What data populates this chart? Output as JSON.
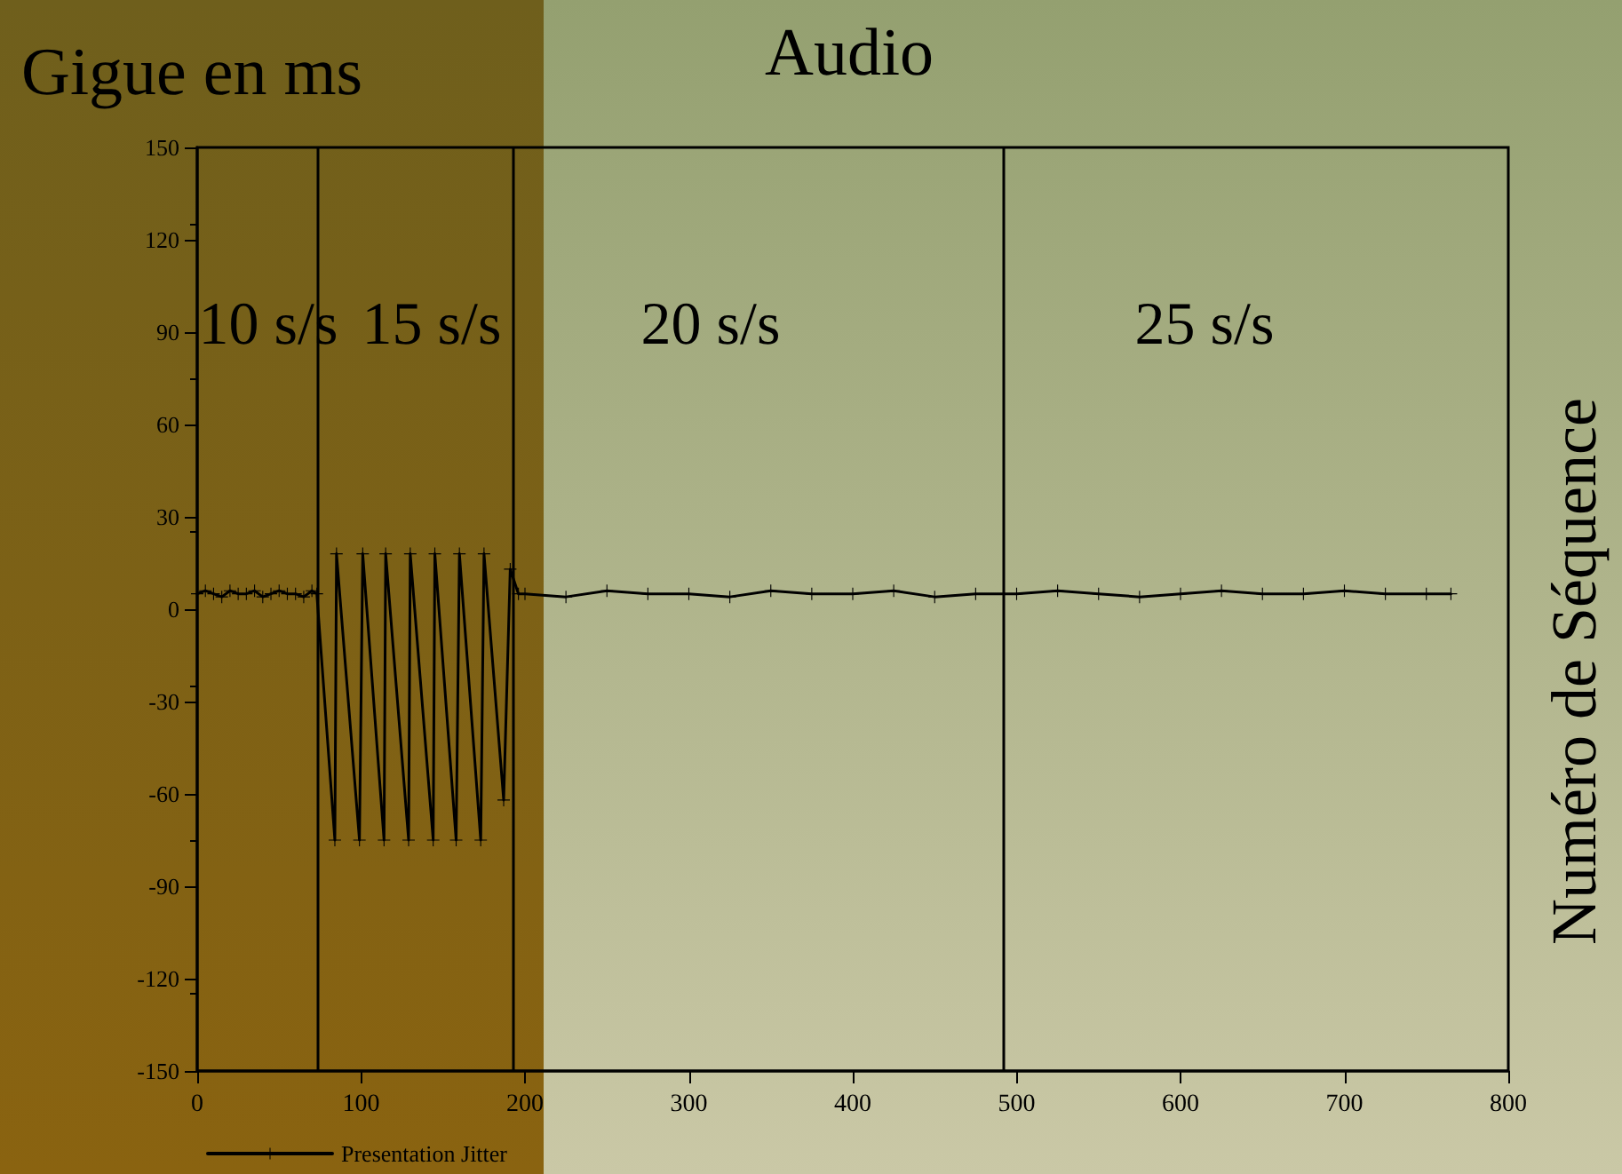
{
  "chart_data": {
    "type": "line",
    "title": "Audio",
    "ylabel": "Gigue en ms",
    "y2label": "Numéro de Séquence",
    "x": [
      0,
      5,
      10,
      15,
      20,
      25,
      30,
      35,
      40,
      45,
      50,
      55,
      60,
      65,
      70,
      73,
      84,
      85,
      99,
      101,
      114,
      115,
      129,
      130,
      144,
      145,
      158,
      160,
      173,
      175,
      187,
      191,
      196,
      200,
      225,
      250,
      275,
      300,
      325,
      350,
      375,
      400,
      425,
      450,
      475,
      500,
      525,
      550,
      575,
      600,
      625,
      650,
      675,
      700,
      725,
      750,
      765
    ],
    "series": [
      {
        "name": "Presentation Jitter",
        "color": "#000000",
        "values": [
          5,
          6,
          5,
          4,
          6,
          5,
          5,
          6,
          4,
          5,
          6,
          5,
          5,
          4,
          6,
          5,
          -75,
          18,
          -75,
          18,
          -75,
          18,
          -75,
          18,
          -75,
          18,
          -75,
          18,
          -75,
          18,
          -62,
          13,
          5,
          5,
          4,
          6,
          5,
          5,
          4,
          6,
          5,
          5,
          6,
          4,
          5,
          5,
          6,
          5,
          4,
          5,
          6,
          5,
          5,
          6,
          5,
          5,
          5
        ]
      }
    ],
    "xlim": [
      0,
      800
    ],
    "xticks": [
      0,
      100,
      200,
      300,
      400,
      500,
      600,
      700,
      800
    ],
    "ylim": [
      -150,
      150
    ],
    "yticks": [
      -150,
      -120,
      -90,
      -60,
      -30,
      0,
      30,
      60,
      90,
      120,
      150
    ],
    "ref_lines": [
      {
        "axis": "x",
        "value": 73,
        "color": "#000000"
      },
      {
        "axis": "x",
        "value": 193,
        "color": "#000000"
      },
      {
        "axis": "x",
        "value": 492,
        "color": "#000000"
      }
    ],
    "annotations": [
      "10 s/s",
      "15 s/s",
      "20 s/s",
      "25 s/s"
    ],
    "grid": false,
    "legend": "bottom left",
    "marker": "cross",
    "line_style": "solid"
  }
}
